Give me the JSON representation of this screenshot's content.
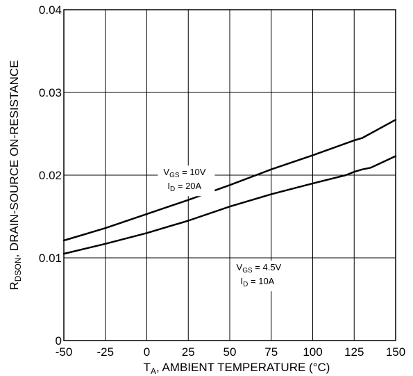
{
  "chart_data": {
    "type": "line",
    "xlabel": {
      "main": "T",
      "sub": "A",
      "rest": ", AMBIENT TEMPERATURE (°C)"
    },
    "ylabel": {
      "main": "R",
      "sub": "DSON",
      "rest": ", DRAIN-SOURCE ON-RESISTANCE"
    },
    "xlim": [
      -50,
      150
    ],
    "ylim": [
      0,
      0.04
    ],
    "x_ticks": [
      "-50",
      "-25",
      "0",
      "25",
      "50",
      "75",
      "100",
      "125",
      "150"
    ],
    "x_tick_values": [
      -50,
      -25,
      0,
      25,
      50,
      75,
      100,
      125,
      150
    ],
    "y_ticks": [
      "0",
      "0.01",
      "0.02",
      "0.03",
      "0.04"
    ],
    "y_tick_values": [
      0,
      0.01,
      0.02,
      0.03,
      0.04
    ],
    "grid": true,
    "series": [
      {
        "x": [
          -50,
          -25,
          0,
          25,
          50,
          75,
          100,
          125,
          130,
          150
        ],
        "y": [
          0.0121,
          0.0136,
          0.0153,
          0.017,
          0.0188,
          0.0207,
          0.0224,
          0.0242,
          0.0245,
          0.0267
        ]
      },
      {
        "x": [
          -50,
          -25,
          0,
          25,
          50,
          75,
          100,
          120,
          125,
          130,
          135,
          150
        ],
        "y": [
          0.0105,
          0.0117,
          0.013,
          0.0145,
          0.0162,
          0.0177,
          0.019,
          0.02,
          0.0204,
          0.0207,
          0.0209,
          0.0223
        ]
      }
    ],
    "annotations": [
      {
        "anchor_x": 10,
        "anchor_y": 0.0204,
        "line1": {
          "main": "V",
          "sub": "GS",
          "rest": " = 10V"
        },
        "line2": {
          "main": "I",
          "sub": "D",
          "rest": " = 20A"
        }
      },
      {
        "anchor_x": 54,
        "anchor_y": 0.0089,
        "line1": {
          "main": "V",
          "sub": "GS",
          "rest": " = 4.5V"
        },
        "line2": {
          "main": "I",
          "sub": "D",
          "rest": " = 10A"
        }
      }
    ]
  }
}
